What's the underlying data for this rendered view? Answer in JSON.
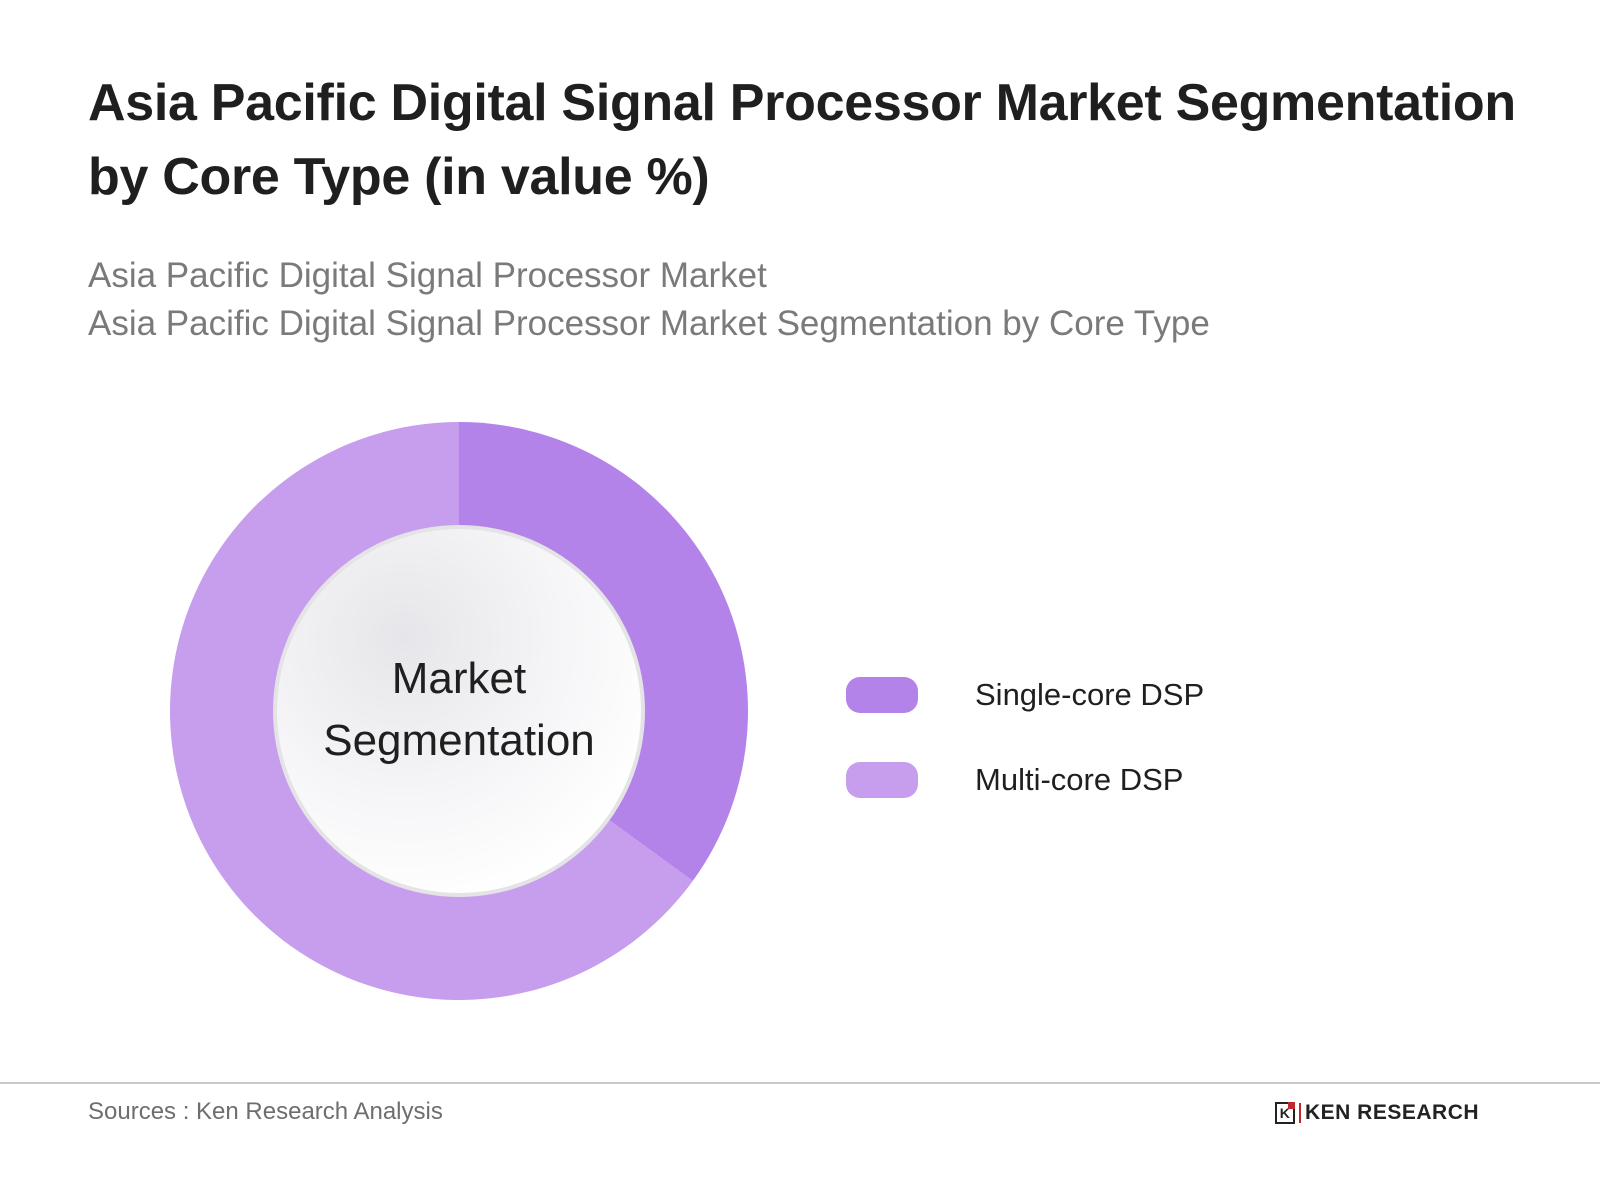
{
  "header": {
    "title": "Asia Pacific Digital Signal Processor Market Segmentation by Core Type (in value %)",
    "subtitle_lines": [
      "Asia Pacific Digital Signal Processor Market",
      "Asia Pacific Digital Signal Processor Market Segmentation by Core Type"
    ]
  },
  "chart": {
    "center_label_line1": "Market",
    "center_label_line2": "Segmentation"
  },
  "legend": [
    {
      "label": "Single-core DSP",
      "color": "#b383ea"
    },
    {
      "label": "Multi-core DSP",
      "color": "#c79ded"
    }
  ],
  "footer": {
    "source": "Sources : Ken Research Analysis",
    "brand": "KEN RESEARCH",
    "brand_logo_letter": "K"
  },
  "chart_data": {
    "type": "pie",
    "variant": "donut",
    "title": "Asia Pacific Digital Signal Processor Market Segmentation by Core Type (in value %)",
    "subtitle": "Asia Pacific Digital Signal Processor Market / Asia Pacific Digital Signal Processor Market Segmentation by Core Type",
    "categories": [
      "Single-core DSP",
      "Multi-core DSP"
    ],
    "values": [
      35,
      65
    ],
    "unit": "%",
    "colors": [
      "#b383ea",
      "#c79ded"
    ],
    "start_angle_deg": 0,
    "direction": "clockwise",
    "center_label": "Market Segmentation",
    "legend_position": "right",
    "data_labels_shown": false,
    "source": "Sources : Ken Research Analysis"
  }
}
